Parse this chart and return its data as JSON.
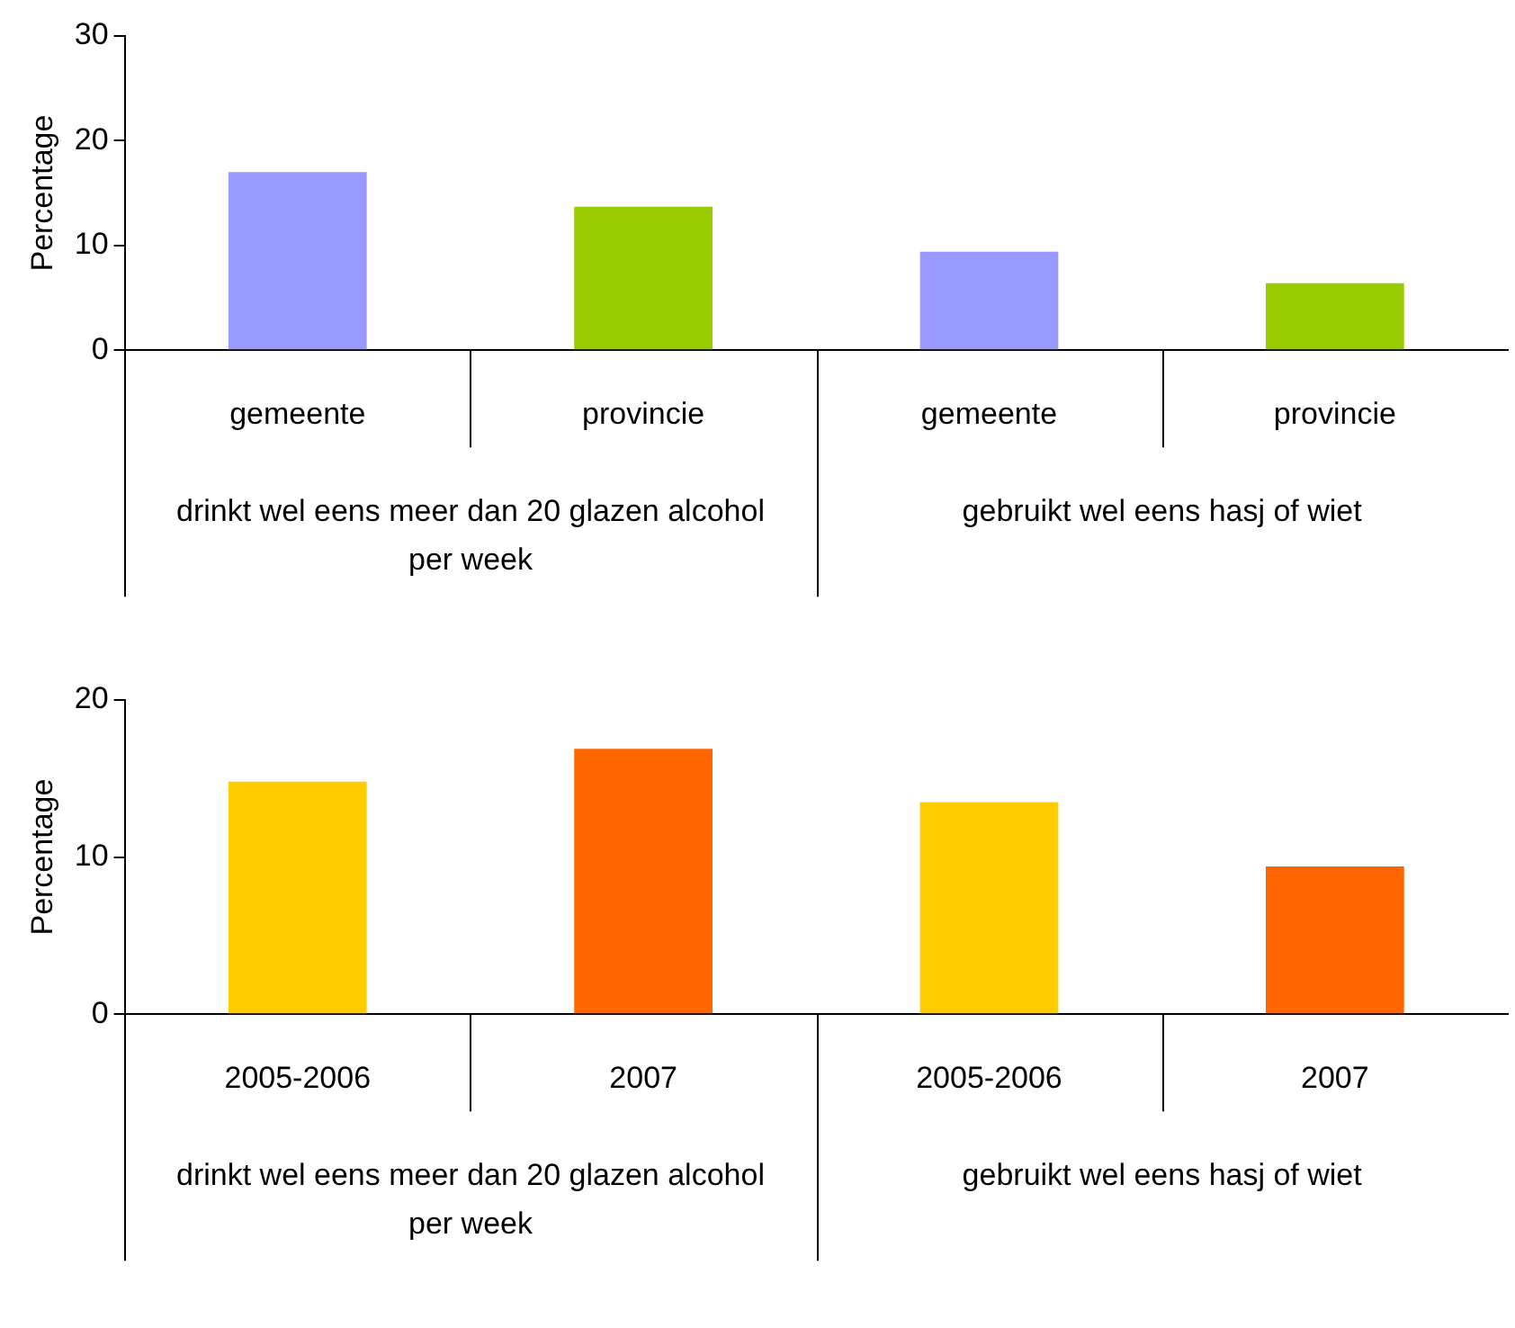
{
  "chart_data": [
    {
      "type": "bar",
      "ylabel": "Percentage",
      "categories": [
        "gemeente",
        "provincie",
        "gemeente",
        "provincie"
      ],
      "values": [
        17.0,
        13.7,
        9.4,
        6.4
      ],
      "colors": [
        "#9999ff",
        "#99cc00",
        "#9999ff",
        "#99cc00"
      ],
      "ylim": [
        0,
        30
      ],
      "yticks": [
        0,
        10,
        20,
        30
      ],
      "grid": false,
      "legend": false,
      "annotations": [
        "drinkt wel eens meer dan 20 glazen alcohol per week",
        "gebruikt wel eens hasj of wiet"
      ]
    },
    {
      "type": "bar",
      "ylabel": "Percentage",
      "categories": [
        "2005-2006",
        "2007",
        "2005-2006",
        "2007"
      ],
      "values": [
        14.8,
        16.9,
        13.5,
        9.4
      ],
      "colors": [
        "#ffcc00",
        "#ff6600",
        "#ffcc00",
        "#ff6600"
      ],
      "ylim": [
        0,
        20
      ],
      "yticks": [
        0,
        10,
        20
      ],
      "grid": false,
      "legend": false,
      "annotations": [
        "drinkt wel eens meer dan 20 glazen alcohol per week",
        "gebruikt wel eens hasj of wiet"
      ]
    }
  ]
}
